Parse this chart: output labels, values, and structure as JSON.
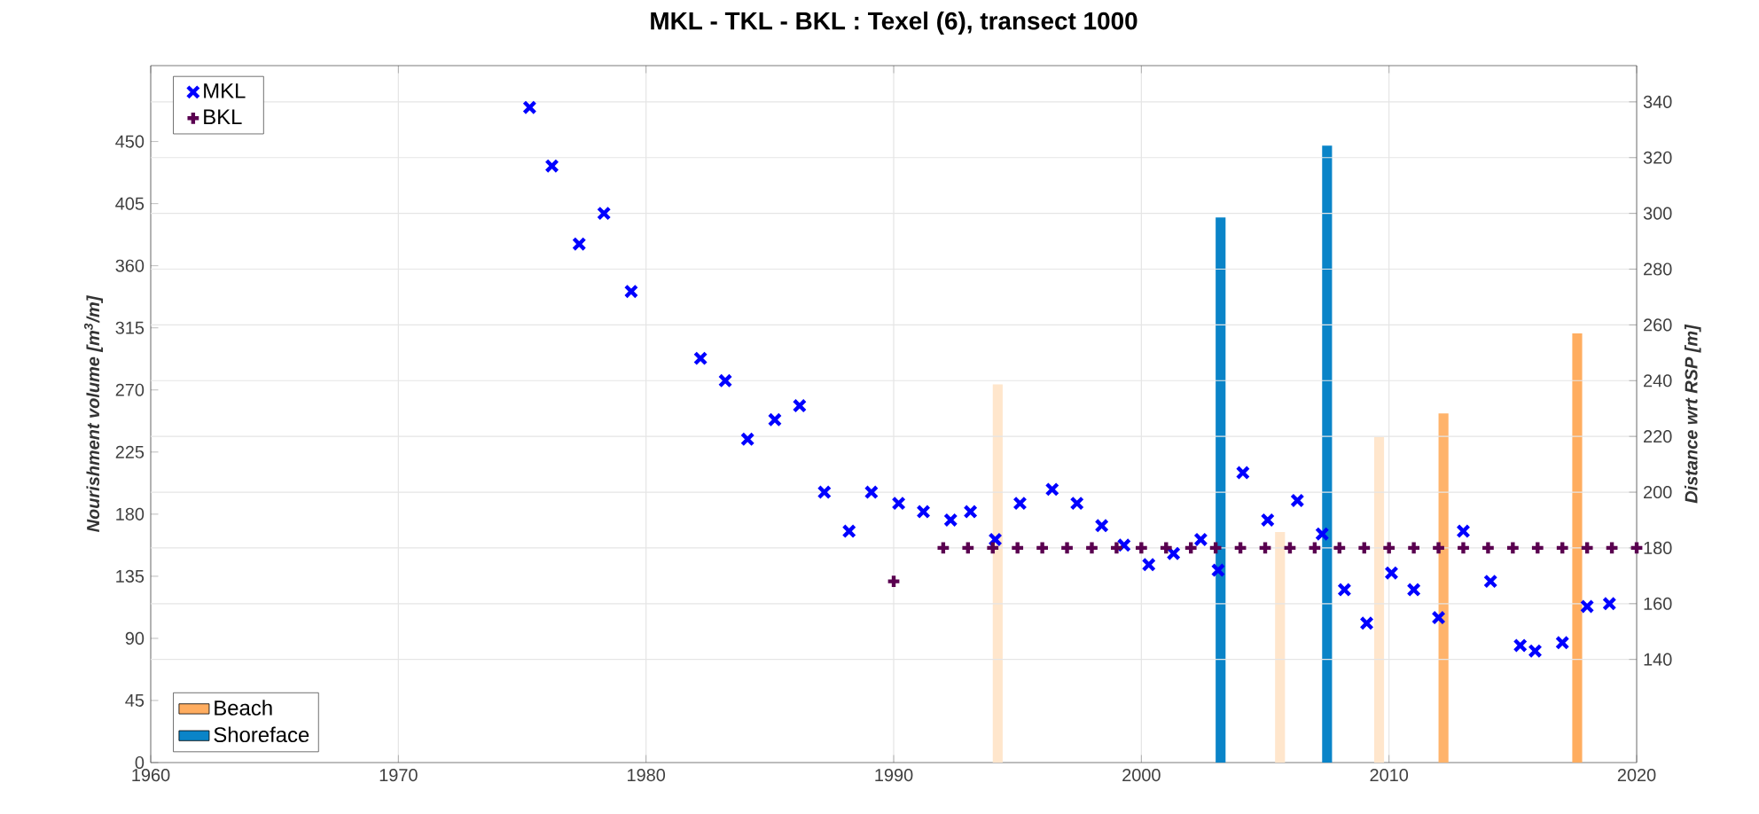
{
  "chart_data": {
    "type": "scatter",
    "title": "MKL - TKL - BKL : Texel (6), transect 1000",
    "ylabel": "Nourishment volume [m$^{3}$/m]",
    "y2label": "Distance wrt RSP [m]",
    "xlim": [
      1960,
      2020
    ],
    "xticks": [
      1960,
      1970,
      1980,
      1990,
      2000,
      2010,
      2020
    ],
    "ylim": [
      0,
      505
    ],
    "yticks": [
      0,
      45,
      90,
      135,
      180,
      225,
      270,
      315,
      360,
      405,
      450
    ],
    "y2lim": [
      103,
      353
    ],
    "y2ticks": [
      140,
      160,
      180,
      200,
      220,
      240,
      260,
      280,
      300,
      320,
      340
    ],
    "grid": true,
    "legend": "top left",
    "series": [
      {
        "name": "MKL",
        "axis": "y2",
        "marker": "cross",
        "color": "#0000ff",
        "x": [
          1975.3,
          1976.2,
          1977.3,
          1978.3,
          1979.4,
          1982.2,
          1983.2,
          1984.1,
          1985.2,
          1986.2,
          1987.2,
          1988.2,
          1989.1,
          1990.2,
          1991.2,
          1992.3,
          1993.1,
          1994.1,
          1995.1,
          1996.4,
          1997.4,
          1998.4,
          1999.3,
          2000.3,
          2001.3,
          2002.4,
          2003.1,
          2004.1,
          2005.1,
          2006.3,
          2007.3,
          2008.2,
          2009.1,
          2010.1,
          2011.0,
          2012.0,
          2013.0,
          2014.1,
          2015.3,
          2015.9,
          2017.0,
          2018.0,
          2018.9
        ],
        "values": [
          338,
          317,
          289,
          300,
          272,
          248,
          240,
          219,
          226,
          231,
          200,
          186,
          200,
          196,
          193,
          190,
          193,
          183,
          196,
          201,
          196,
          188,
          181,
          174,
          178,
          183,
          172,
          207,
          190,
          197,
          185,
          165,
          153,
          171,
          165,
          155,
          186,
          168,
          145,
          143,
          146,
          159,
          160
        ]
      },
      {
        "name": "BKL",
        "axis": "y2",
        "marker": "plus",
        "color": "#5a0050",
        "x": [
          1990,
          1992,
          1993,
          1994,
          1995,
          1996,
          1997,
          1998,
          1999,
          2000,
          2001,
          2002,
          2003,
          2004,
          2005,
          2006,
          2007,
          2008,
          2009,
          2010,
          2011,
          2012,
          2013,
          2014,
          2015,
          2016,
          2017,
          2018,
          2019,
          2020
        ],
        "values": [
          168,
          180,
          180,
          180,
          180,
          180,
          180,
          180,
          180,
          180,
          180,
          180,
          180,
          180,
          180,
          180,
          180,
          180,
          180,
          180,
          180,
          180,
          180,
          180,
          180,
          180,
          180,
          180,
          180,
          180
        ]
      },
      {
        "name": "Beach",
        "type": "bar",
        "color": "#ffad60",
        "x": [
          1994.2,
          2005.6,
          2009.6,
          2012.2,
          2017.6
        ],
        "values": [
          274,
          167,
          236,
          253,
          311
        ],
        "colors": [
          "#ffe6cc",
          "#ffe6cc",
          "#ffe6cc",
          "#ffb36b",
          "#ffad60"
        ]
      },
      {
        "name": "Shoreface",
        "type": "bar",
        "color": "#0a84c8",
        "x": [
          2003.2,
          2007.5
        ],
        "values": [
          395,
          447
        ]
      }
    ]
  }
}
